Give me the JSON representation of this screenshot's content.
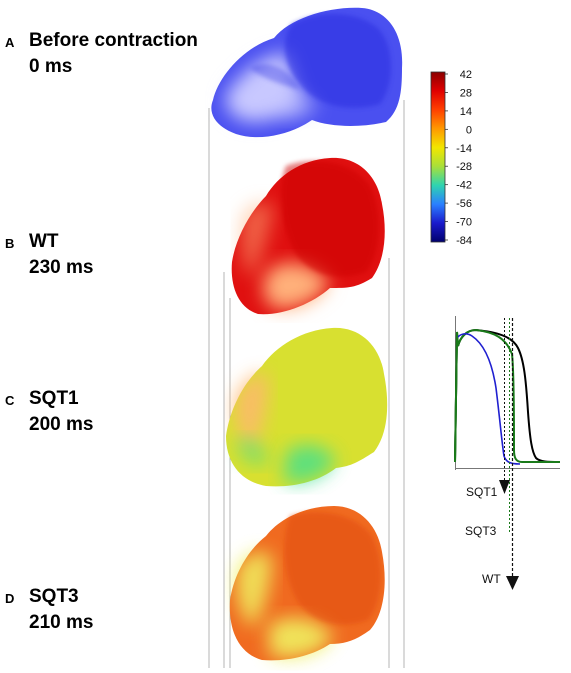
{
  "panels": [
    {
      "letter": "A",
      "condition": "Before contraction",
      "time": "0 ms"
    },
    {
      "letter": "B",
      "condition": "WT",
      "time": "230 ms"
    },
    {
      "letter": "C",
      "condition": "SQT1",
      "time": "200 ms"
    },
    {
      "letter": "D",
      "condition": "SQT3",
      "time": "210 ms"
    }
  ],
  "colorbar": {
    "ticks": [
      "42",
      "28",
      "14",
      "0",
      "-14",
      "-28",
      "-42",
      "-56",
      "-70",
      "-84"
    ],
    "colormap": [
      "#8b0000",
      "#e00000",
      "#ff4000",
      "#ff9900",
      "#f2e600",
      "#a8e03a",
      "#2ed4b0",
      "#2a80ff",
      "#1a1acc",
      "#00006e"
    ]
  },
  "heart_colors": {
    "before": {
      "base": "#4a50f0",
      "light": "#c8c8ff",
      "dark": "#2a2ee0"
    },
    "wt": {
      "base": "#e01010",
      "light": "#ffb07a",
      "dark": "#cc0000"
    },
    "sqt1": {
      "base": "#d8e030",
      "light": "#ffb870",
      "dark": "#40e090"
    },
    "sqt3": {
      "base": "#f06a20",
      "light": "#f0f060",
      "dark": "#e04a10"
    }
  },
  "action_potential": {
    "traces": [
      {
        "name": "SQT1",
        "color": "#2020d0"
      },
      {
        "name": "SQT3",
        "color": "#1a7a1a"
      },
      {
        "name": "WT",
        "color": "#000000"
      }
    ],
    "labels": [
      "SQT1",
      "SQT3",
      "WT"
    ]
  }
}
